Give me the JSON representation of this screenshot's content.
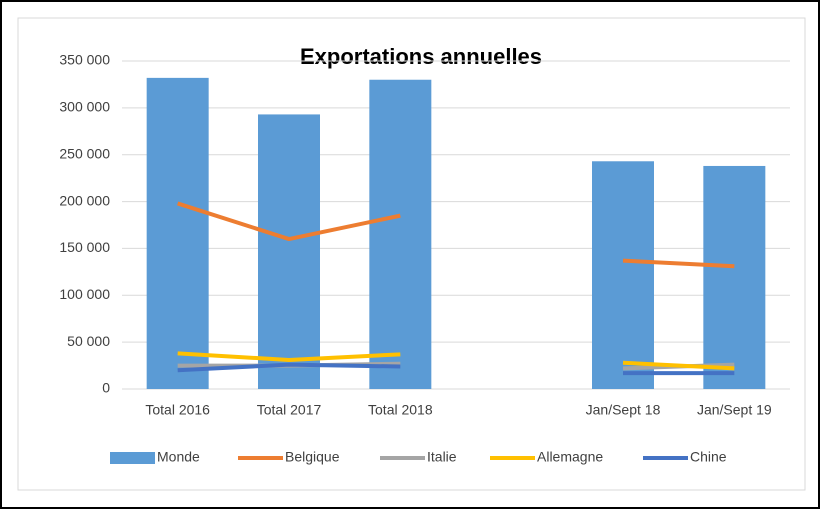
{
  "chart_data": {
    "type": "bar",
    "title": "Exportations annuelles",
    "categories": [
      "Total 2016",
      "Total 2017",
      "Total 2018",
      null,
      "Jan/Sept 18",
      "Jan/Sept 19"
    ],
    "series": [
      {
        "name": "Monde",
        "type": "bar",
        "color": "#5b9bd5",
        "values": [
          332000,
          293000,
          330000,
          null,
          243000,
          238000
        ]
      },
      {
        "name": "Belgique",
        "type": "line",
        "color": "#ed7d31",
        "values": [
          198000,
          160000,
          185000,
          null,
          137000,
          131000
        ]
      },
      {
        "name": "Italie",
        "type": "line",
        "color": "#a5a5a5",
        "values": [
          25000,
          25000,
          27000,
          null,
          22000,
          26000
        ]
      },
      {
        "name": "Allemagne",
        "type": "line",
        "color": "#ffc000",
        "values": [
          38000,
          31000,
          37000,
          null,
          28000,
          22000
        ]
      },
      {
        "name": "Chine",
        "type": "line",
        "color": "#4472c4",
        "values": [
          20000,
          26000,
          24000,
          null,
          17000,
          17000
        ]
      }
    ],
    "ylim": [
      0,
      350000
    ],
    "yticks": [
      0,
      {
        "value": 50000,
        "label": "50 000"
      },
      {
        "value": 100000,
        "label": "100 000"
      },
      {
        "value": 150000,
        "label": "150 000"
      },
      {
        "value": 200000,
        "label": "200 000"
      },
      {
        "value": 250000,
        "label": "250 000"
      },
      {
        "value": 300000,
        "label": "300 000"
      },
      {
        "value": 350000,
        "label": "350 000"
      }
    ],
    "grid": true,
    "legend": "bottom"
  }
}
